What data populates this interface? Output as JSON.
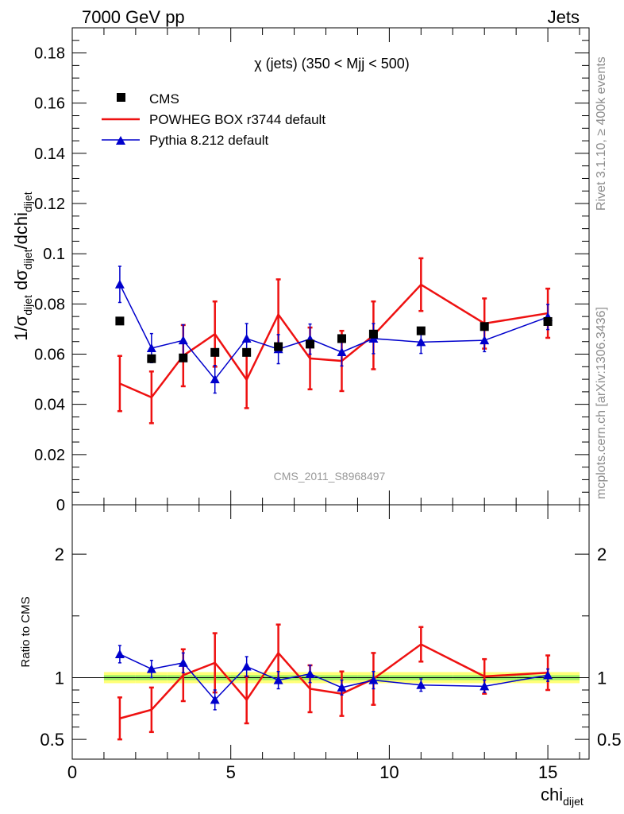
{
  "header": {
    "energy_label": "7000 GeV pp",
    "category_label": "Jets"
  },
  "side_labels": {
    "rivet": "Rivet 3.1.10, ≥ 400k events",
    "mcplots": "mcplots.cern.ch [arXiv:1306.3436]"
  },
  "watermark": "CMS_2011_S8968497",
  "chart_data": {
    "type": "scatter",
    "title": "χ (jets) (350 < Mjj <  500)",
    "ylabel_main": "1/σdijet dσdijet/dchidijet",
    "ylabel_ratio": "Ratio to CMS",
    "xlabel": "chidijet",
    "xlim": [
      0,
      16.3
    ],
    "ylim_main": [
      0,
      0.19
    ],
    "ylim_ratio": [
      0.34,
      2.4
    ],
    "y_ticks_main": [
      "0",
      "0.02",
      "0.04",
      "0.06",
      "0.08",
      "0.1",
      "0.12",
      "0.14",
      "0.16",
      "0.18"
    ],
    "y_ticks_ratio": [
      "0.5",
      "1",
      "2"
    ],
    "x_ticks": [
      "0",
      "5",
      "10",
      "15"
    ],
    "legend": [
      "CMS",
      "POWHEG BOX r3744 default",
      "Pythia 8.212 default"
    ],
    "x": [
      1.5,
      2.5,
      3.5,
      4.5,
      5.5,
      6.5,
      7.5,
      8.5,
      9.5,
      11,
      13,
      15
    ],
    "bin_edges": [
      1,
      2,
      3,
      4,
      5,
      6,
      7,
      8,
      9,
      10,
      12,
      14,
      16
    ],
    "series": [
      {
        "name": "CMS",
        "color": "#000000",
        "marker": "square",
        "values": [
          0.0732,
          0.0582,
          0.0585,
          0.0607,
          0.0607,
          0.063,
          0.064,
          0.0662,
          0.068,
          0.0693,
          0.071,
          0.073
        ],
        "errors": [
          0.001,
          0.0016,
          0.0012,
          0.0012,
          0.0012,
          0.001,
          0.001,
          0.001,
          0.001,
          0.001,
          0.001,
          0.001
        ]
      },
      {
        "name": "POWHEG BOX r3744 default",
        "color": "#ee1111",
        "marker": "line",
        "values": [
          0.0483,
          0.0428,
          0.0594,
          0.068,
          0.0498,
          0.0758,
          0.0583,
          0.0573,
          0.0675,
          0.0877,
          0.0722,
          0.0763
        ],
        "errors": [
          0.011,
          0.0103,
          0.0122,
          0.013,
          0.0113,
          0.014,
          0.0123,
          0.012,
          0.0135,
          0.0105,
          0.01,
          0.0098
        ],
        "ratio": [
          0.67,
          0.74,
          1.02,
          1.12,
          0.82,
          1.2,
          0.91,
          0.87,
          0.99,
          1.27,
          1.01,
          1.04
        ],
        "ratio_errors": [
          0.17,
          0.18,
          0.21,
          0.24,
          0.19,
          0.23,
          0.19,
          0.18,
          0.21,
          0.14,
          0.14,
          0.14
        ]
      },
      {
        "name": "Pythia 8.212 default",
        "color": "#0000cc",
        "marker": "triangle",
        "values": [
          0.0878,
          0.0624,
          0.0655,
          0.05,
          0.0662,
          0.062,
          0.066,
          0.0608,
          0.0662,
          0.0648,
          0.0655,
          0.0748
        ],
        "errors": [
          0.0072,
          0.0058,
          0.0062,
          0.0055,
          0.006,
          0.0058,
          0.006,
          0.0055,
          0.006,
          0.0045,
          0.0045,
          0.005
        ],
        "ratio": [
          1.19,
          1.07,
          1.12,
          0.82,
          1.09,
          0.98,
          1.03,
          0.92,
          0.98,
          0.94,
          0.93,
          1.02
        ],
        "ratio_errors": [
          0.07,
          0.07,
          0.08,
          0.08,
          0.08,
          0.07,
          0.07,
          0.06,
          0.07,
          0.05,
          0.05,
          0.05
        ]
      }
    ]
  }
}
